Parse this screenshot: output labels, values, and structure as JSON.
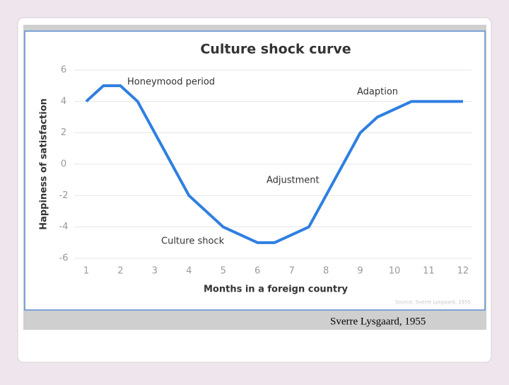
{
  "chart_data": {
    "type": "line",
    "title": "Culture shock curve",
    "x_label": "Months in a foreign country",
    "y_label": "Happiness of satisfaction",
    "x": [
      1,
      1.5,
      2,
      2.5,
      4,
      5,
      6,
      6.5,
      7.5,
      9,
      9.5,
      10.5,
      12
    ],
    "values": [
      4,
      5,
      5,
      4,
      -2,
      -4,
      -5,
      -5,
      -4,
      2,
      3,
      4,
      4
    ],
    "color": "#2f7fe0",
    "xlim": [
      0.65,
      12.25
    ],
    "xticks": [
      1,
      2,
      3,
      4,
      5,
      6,
      7,
      8,
      9,
      10,
      11,
      12
    ],
    "ylim": [
      -6,
      6
    ],
    "yticks": [
      -6,
      -4,
      -2,
      0,
      2,
      4,
      6
    ],
    "grid": true,
    "annotations": [
      "Honeymood period",
      "Adaption",
      "Adjustment",
      "Culture shock"
    ],
    "source": "Source: Sverre Lysgaard, 1955"
  },
  "caption": "Sverre Lysgaard, 1955"
}
